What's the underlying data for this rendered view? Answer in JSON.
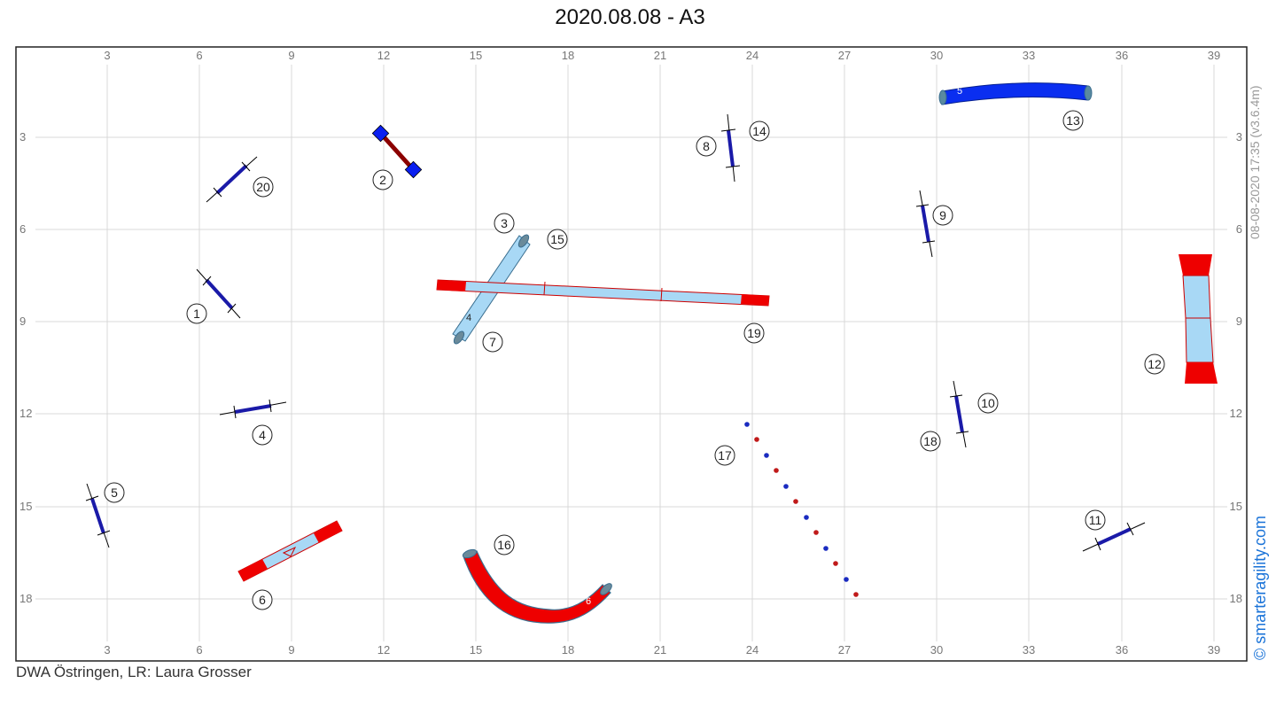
{
  "title": "2020.08.08 - A3",
  "footer": "DWA Östringen, LR: Laura Grosser",
  "timestamp": "08-08-2020 17:35  (v3.6.4m)",
  "brand": "© smarteragility.com",
  "grid": {
    "x_labels": [
      "3",
      "6",
      "9",
      "12",
      "15",
      "18",
      "21",
      "24",
      "27",
      "30",
      "33",
      "36",
      "39"
    ],
    "y_labels": [
      "3",
      "6",
      "9",
      "12",
      "15",
      "18"
    ]
  },
  "numbers": {
    "n1": "1",
    "n2": "2",
    "n3": "3",
    "n4": "4",
    "n5": "5",
    "n6": "6",
    "n7": "7",
    "n8": "8",
    "n9": "9",
    "n10": "10",
    "n11": "11",
    "n12": "12",
    "n13": "13",
    "n14": "14",
    "n15": "15",
    "n16": "16",
    "n17": "17",
    "n18": "18",
    "n19": "19",
    "n20": "20"
  },
  "object_labels": {
    "tunnel_5": "5",
    "tunnel_6": "6",
    "tunnel_4": "4"
  },
  "colors": {
    "grid": "#d9d9d9",
    "jump": "#1a1aa8",
    "red": "#ee0000",
    "lightblue": "#a8d8f5",
    "tunnel_blue": "#0a2ef0",
    "weave_blue": "#1a2bc0",
    "weave_red": "#c01a1a"
  }
}
